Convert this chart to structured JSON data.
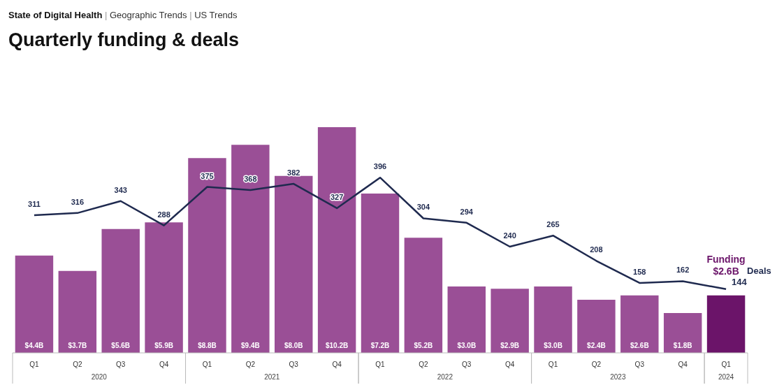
{
  "chart_data": {
    "type": "bar",
    "subtitle": "State of Digital Health | Geographic Trends | US Trends",
    "title": "Quarterly funding & deals",
    "categories": [
      "Q1",
      "Q2",
      "Q3",
      "Q4",
      "Q1",
      "Q2",
      "Q3",
      "Q4",
      "Q1",
      "Q2",
      "Q3",
      "Q4",
      "Q1",
      "Q2",
      "Q3",
      "Q4",
      "Q1"
    ],
    "annotations": [
      "2020",
      "2021",
      "2022",
      "2023",
      "2024"
    ],
    "series": [
      {
        "name": "Funding",
        "color": "#9a4f96",
        "colors": [
          null,
          null,
          null,
          null,
          null,
          null,
          null,
          null,
          null,
          null,
          null,
          null,
          null,
          null,
          null,
          null,
          "#6b1469"
        ],
        "values": [
          4.4,
          3.7,
          5.6,
          5.9,
          8.8,
          9.4,
          8.0,
          10.2,
          7.2,
          5.2,
          3.0,
          2.9,
          3.0,
          2.4,
          2.6,
          1.8,
          2.6
        ],
        "value_labels": [
          "$4.4B",
          "$3.7B",
          "$5.6B",
          "$5.9B",
          "$8.8B",
          "$9.4B",
          "$8.0B",
          "$10.2B",
          "$7.2B",
          "$5.2B",
          "$3.0B",
          "$2.9B",
          "$3.0B",
          "$2.4B",
          "$2.6B",
          "$1.8B",
          "$2.6B"
        ]
      },
      {
        "name": "Deals",
        "type": "line",
        "axis": "y2",
        "color": "#1f2a4f",
        "values": [
          311,
          316,
          343,
          288,
          375,
          368,
          382,
          327,
          396,
          304,
          294,
          240,
          265,
          208,
          158,
          162,
          144
        ],
        "value_labels": [
          "311",
          "316",
          "343",
          "288",
          "375",
          "368",
          "382",
          "327",
          "396",
          "304",
          "294",
          "240",
          "265",
          "208",
          "158",
          "162",
          "144"
        ]
      }
    ],
    "legend": false,
    "grid": false,
    "marker": "none"
  }
}
